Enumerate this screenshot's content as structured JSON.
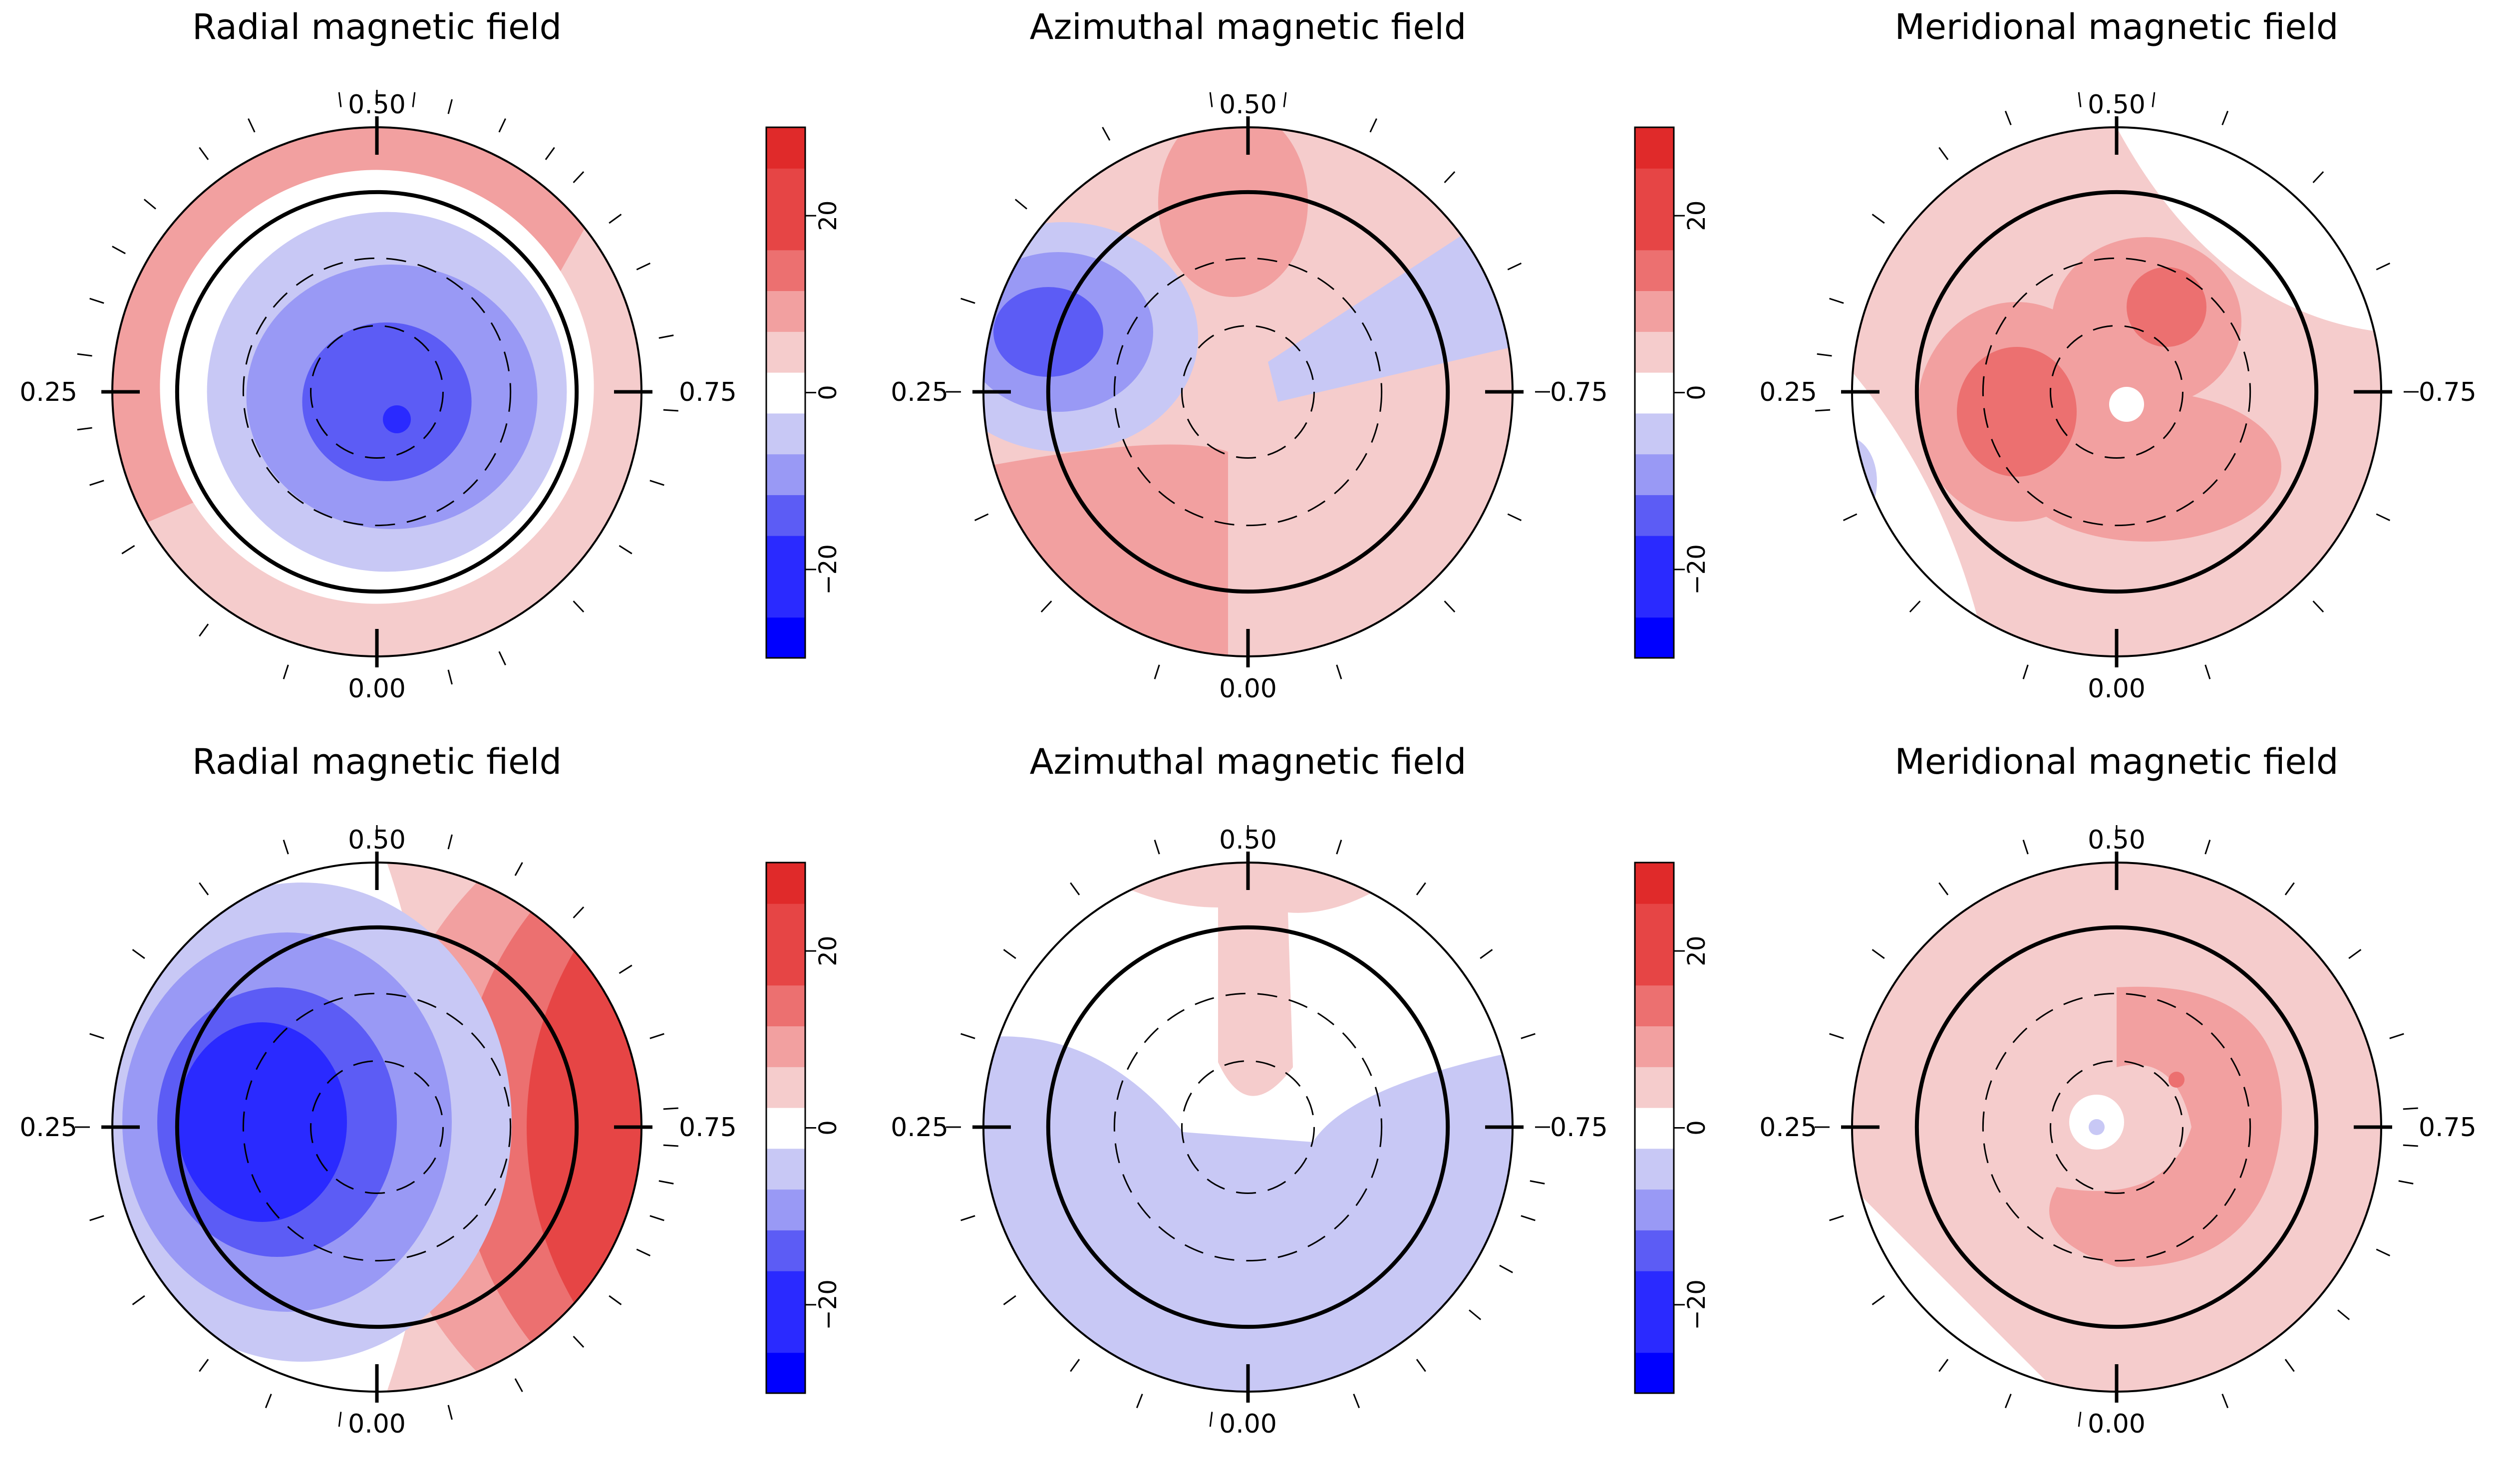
{
  "colorbar": {
    "ticks": [
      "20",
      "0",
      "−20"
    ],
    "colors": [
      "#0000ff",
      "#2a2aff",
      "#5c5cf5",
      "#9999f5",
      "#c8c8f5",
      "#ffffff",
      "#f5cccc",
      "#f2a0a0",
      "#ec7070",
      "#e64545",
      "#e02a2a"
    ]
  },
  "phase_labels": {
    "top": "0.50",
    "bottom": "0.00",
    "left": "0.25",
    "right": "0.75"
  },
  "chart_data": [
    {
      "type": "polar-contour",
      "title": "Radial magnetic field",
      "colorbar_range": [
        -30,
        30
      ],
      "colorbar_levels": [
        -30,
        -25,
        -20,
        -15,
        -10,
        -5,
        0,
        5,
        10,
        15,
        20,
        25,
        30
      ],
      "phase_labels": [
        "0.00",
        "0.25",
        "0.50",
        "0.75"
      ],
      "base": 1,
      "blobs": [
        {
          "theta": 0,
          "r": 0.62,
          "level": -2
        },
        {
          "theta": 0,
          "r": 0.42,
          "level": -3
        },
        {
          "theta": 0,
          "r": 0.08,
          "level": -4
        }
      ],
      "shell": [
        {
          "phase": 0.3,
          "level": 2
        },
        {
          "phase": 0.46,
          "level": 2
        },
        {
          "phase": 0.6,
          "level": 2
        }
      ],
      "rotation_phases": [
        0.48,
        0.5,
        0.52,
        0.54,
        0.57,
        0.6,
        0.62,
        0.65,
        0.68,
        0.72,
        0.76,
        0.8,
        0.84,
        0.88,
        0.93,
        0.96,
        0.05,
        0.1,
        0.16,
        0.2,
        0.23,
        0.27,
        0.3,
        0.33,
        0.36,
        0.4,
        0.43
      ]
    },
    {
      "type": "polar-contour",
      "title": "Azimuthal magnetic field",
      "colorbar_range": [
        -30,
        30
      ],
      "phase_labels": [
        "0.00",
        "0.25",
        "0.50",
        "0.75"
      ],
      "base": 1,
      "blobs": [
        {
          "theta": 0.5,
          "r": 0.32,
          "level": 2
        },
        {
          "theta": 0.22,
          "r": 0.45,
          "level": -2
        },
        {
          "theta": 0.27,
          "r": 0.58,
          "level": -3
        },
        {
          "theta": 0.1,
          "r": 0.5,
          "level": 2
        },
        {
          "theta": 0.7,
          "r": 0.45,
          "level": -1
        }
      ],
      "rotation_phases": [
        0.48,
        0.52,
        0.57,
        0.62,
        0.68,
        0.75,
        0.82,
        0.88,
        0.95,
        0.05,
        0.12,
        0.18,
        0.25,
        0.3,
        0.36,
        0.42
      ]
    },
    {
      "type": "polar-contour",
      "title": "Meridional magnetic field",
      "phase_labels": [
        "0.00",
        "0.25",
        "0.50",
        "0.75"
      ],
      "base": 1,
      "blobs": [
        {
          "theta": 0.28,
          "r": 0.3,
          "level": 2
        },
        {
          "theta": 0.6,
          "r": 0.28,
          "level": 3
        },
        {
          "theta": 0.25,
          "r": 0.28,
          "level": 3
        },
        {
          "theta": 0.0,
          "r": 0.0,
          "level": 0
        }
      ],
      "rotation_phases": [
        0.48,
        0.52,
        0.56,
        0.62,
        0.68,
        0.75,
        0.82,
        0.88,
        0.95,
        0.05,
        0.12,
        0.18,
        0.24,
        0.27,
        0.3,
        0.35,
        0.4,
        0.44
      ]
    },
    {
      "type": "polar-contour",
      "title": "Radial magnetic field",
      "colorbar_range": [
        -30,
        30
      ],
      "phase_labels": [
        "0.00",
        "0.25",
        "0.50",
        "0.75"
      ],
      "base": 1,
      "blobs": [
        {
          "theta": 0.25,
          "r": 0.4,
          "level": -2
        },
        {
          "theta": 0.25,
          "r": 0.4,
          "level": -4
        },
        {
          "theta": 0.75,
          "r": 0.85,
          "level": 3
        }
      ],
      "rotation_phases": [
        0.5,
        0.54,
        0.58,
        0.62,
        0.66,
        0.7,
        0.74,
        0.76,
        0.78,
        0.8,
        0.82,
        0.85,
        0.88,
        0.92,
        0.96,
        0.02,
        0.06,
        0.1,
        0.15,
        0.2,
        0.25,
        0.3,
        0.35,
        0.4,
        0.45
      ]
    },
    {
      "type": "polar-contour",
      "title": "Azimuthal magnetic field",
      "colorbar_range": [
        -30,
        30
      ],
      "phase_labels": [
        "0.00",
        "0.25",
        "0.50",
        "0.75"
      ],
      "base": -1,
      "blobs": [
        {
          "theta": 0.5,
          "r": 0.6,
          "level": 1
        },
        {
          "theta": 0.5,
          "r": 0.95,
          "level": 1
        }
      ],
      "rotation_phases": [
        0.5,
        0.55,
        0.6,
        0.65,
        0.7,
        0.75,
        0.78,
        0.8,
        0.83,
        0.86,
        0.9,
        0.94,
        0.02,
        0.06,
        0.1,
        0.15,
        0.2,
        0.25,
        0.3,
        0.35,
        0.4,
        0.45
      ]
    },
    {
      "type": "polar-contour",
      "title": "Meridional magnetic field",
      "phase_labels": [
        "0.00",
        "0.25",
        "0.50",
        "0.75"
      ],
      "base": 1,
      "blobs": [
        {
          "theta": 0.75,
          "r": 0.35,
          "level": 2
        },
        {
          "theta": 0.0,
          "r": 0.0,
          "level": 0
        }
      ],
      "rotation_phases": [
        0.5,
        0.55,
        0.6,
        0.65,
        0.7,
        0.74,
        0.76,
        0.78,
        0.82,
        0.86,
        0.9,
        0.94,
        0.02,
        0.06,
        0.1,
        0.15,
        0.2,
        0.25,
        0.3,
        0.35,
        0.4,
        0.45
      ]
    }
  ]
}
